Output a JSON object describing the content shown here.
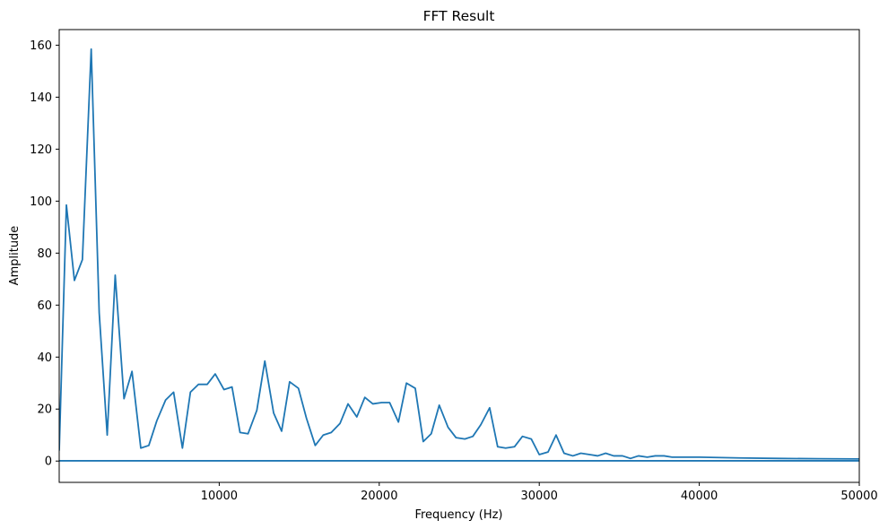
{
  "chart_data": {
    "type": "line",
    "title": "FFT Result",
    "xlabel": "Frequency (Hz)",
    "ylabel": "Amplitude",
    "xlim": [
      0,
      50000
    ],
    "ylim": [
      -8.2,
      166
    ],
    "grid": false,
    "legend": "none",
    "x_ticks": [
      10000,
      20000,
      30000,
      40000,
      50000
    ],
    "y_ticks": [
      0,
      20,
      40,
      60,
      80,
      100,
      120,
      140,
      160
    ],
    "colors": {
      "line": "#1f77b4",
      "axes": "#000000",
      "background": "#ffffff"
    },
    "series": [
      {
        "values_x": [
          0,
          450,
          950,
          1450,
          2000,
          2500,
          3000,
          3500,
          4050,
          4550,
          5100,
          5600,
          6100,
          6650,
          7150,
          7700,
          8200,
          8700,
          9250,
          9750,
          10300,
          10800,
          11300,
          11800,
          12350,
          12850,
          13400,
          13900,
          14400,
          14950,
          15450,
          16000,
          16500,
          17000,
          17550,
          18050,
          18600,
          19100,
          19600,
          20150,
          20650,
          21200,
          21700,
          22250,
          22750,
          23250,
          23750,
          24300,
          24800,
          25350,
          25850,
          26350,
          26900,
          27400,
          27900,
          28450,
          28950,
          29500,
          30000,
          30550,
          31050,
          31550,
          32100,
          32600,
          33150,
          33650,
          34150,
          34650,
          35200,
          35700,
          36200,
          36750,
          37250,
          37800,
          38300,
          38800,
          40000,
          42500,
          45000,
          47500,
          50000
        ],
        "values": [
          4,
          98.5,
          69.5,
          77.5,
          158.5,
          57,
          10,
          71.5,
          24,
          34.5,
          5,
          6,
          15.5,
          23.5,
          26.5,
          5,
          26.5,
          29.5,
          29.5,
          33.5,
          27.5,
          28.5,
          11,
          10.5,
          19.5,
          38.5,
          18.5,
          11.5,
          30.5,
          28,
          16.5,
          6,
          10,
          11,
          14.5,
          22,
          17,
          24.5,
          22,
          22.5,
          22.5,
          15,
          30,
          28,
          7.5,
          10.5,
          21.5,
          13,
          9,
          8.5,
          9.5,
          14,
          20.5,
          5.5,
          5,
          5.5,
          9.5,
          8.5,
          2.5,
          3.5,
          10,
          3,
          2,
          3,
          2.5,
          2,
          3,
          2,
          2,
          1,
          2,
          1.5,
          2,
          2,
          1.5,
          1.5,
          1.5,
          1.2,
          1,
          0.9,
          0.8
        ]
      },
      {
        "values_x": [
          0,
          50000
        ],
        "values": [
          0.1,
          0.1
        ]
      }
    ]
  }
}
